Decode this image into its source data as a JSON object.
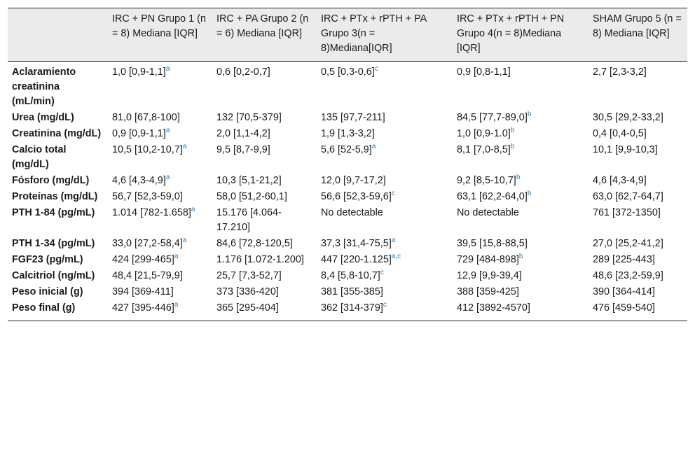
{
  "table": {
    "headers": [
      "",
      "IRC + PN Grupo 1 (n = 8) Mediana [IQR]",
      "IRC + PA Grupo 2 (n = 6) Mediana [IQR]",
      "IRC + PTx + rPTH + PA Grupo 3(n = 8)Mediana[IQR]",
      "IRC + PTx + rPTH + PN Grupo 4(n = 8)Mediana [IQR]",
      "SHAM Grupo 5 (n = 8) Mediana [IQR]"
    ],
    "rows": [
      {
        "label": "Aclaramiento creatinina (mL/min)",
        "cells": [
          {
            "v": "1,0 [0,9-1,1]",
            "s": "a"
          },
          {
            "v": "0,6 [0,2-0,7]",
            "s": ""
          },
          {
            "v": "0,5 [0,3-0,6]",
            "s": "c"
          },
          {
            "v": "0,9 [0,8-1,1]",
            "s": ""
          },
          {
            "v": "2,7 [2,3-3,2]",
            "s": ""
          }
        ]
      },
      {
        "label": "Urea (mg/dL)",
        "cells": [
          {
            "v": "81,0 [67,8-100]",
            "s": ""
          },
          {
            "v": "132 [70,5-379]",
            "s": ""
          },
          {
            "v": "135 [97,7-211]",
            "s": ""
          },
          {
            "v": "84,5 [77,7-89,0]",
            "s": "b"
          },
          {
            "v": "30,5 [29,2-33,2]",
            "s": ""
          }
        ]
      },
      {
        "label": "Creatinina (mg/dL)",
        "cells": [
          {
            "v": "0,9 [0,9-1,1]",
            "s": "a"
          },
          {
            "v": "2,0 [1,1-4,2]",
            "s": ""
          },
          {
            "v": "1,9 [1,3-3,2]",
            "s": ""
          },
          {
            "v": "1,0 [0,9-1.0]",
            "s": "b"
          },
          {
            "v": "0,4 [0,4-0,5]",
            "s": ""
          }
        ]
      },
      {
        "label": "Calcio total (mg/dL)",
        "cells": [
          {
            "v": "10,5 [10,2-10,7]",
            "s": "a"
          },
          {
            "v": "9,5 [8,7-9,9]",
            "s": ""
          },
          {
            "v": "5,6 [52-5,9]",
            "s": "a"
          },
          {
            "v": "8,1 [7,0-8,5]",
            "s": "b"
          },
          {
            "v": "10,1 [9,9-10,3]",
            "s": ""
          }
        ]
      },
      {
        "label": "Fósforo (mg/dL)",
        "cells": [
          {
            "v": "4,6 [4,3-4,9]",
            "s": "a"
          },
          {
            "v": "10,3 [5,1-21,2]",
            "s": ""
          },
          {
            "v": "12,0 [9,7-17,2]",
            "s": ""
          },
          {
            "v": "9,2 [8,5-10,7]",
            "s": "b"
          },
          {
            "v": "4,6 [4,3-4,9]",
            "s": ""
          }
        ]
      },
      {
        "label": "Proteínas (mg/dL)",
        "cells": [
          {
            "v": "56,7 [52,3-59,0]",
            "s": ""
          },
          {
            "v": "58,0 [51,2-60,1]",
            "s": ""
          },
          {
            "v": "56,6 [52,3-59,6]",
            "s": "c"
          },
          {
            "v": "63,1 [62,2-64,0]",
            "s": "b"
          },
          {
            "v": "63,0 [62,7-64,7]",
            "s": ""
          }
        ]
      },
      {
        "label": "PTH 1-84 (pg/mL)",
        "cells": [
          {
            "v": "1.014 [782-1.658]",
            "s": "a"
          },
          {
            "v": "15.176 [4.064-17.210]",
            "s": ""
          },
          {
            "v": "No detectable",
            "s": ""
          },
          {
            "v": "No detectable",
            "s": ""
          },
          {
            "v": "761 [372-1350]",
            "s": ""
          }
        ]
      },
      {
        "label": "PTH 1-34 (pg/mL)",
        "cells": [
          {
            "v": "33,0 [27,2-58,4]",
            "s": "a"
          },
          {
            "v": "84,6 [72,8-120,5]",
            "s": ""
          },
          {
            "v": "37,3 [31,4-75,5]",
            "s": "a"
          },
          {
            "v": "39,5 [15,8-88,5]",
            "s": ""
          },
          {
            "v": "27,0 [25,2-41,2]",
            "s": ""
          }
        ]
      },
      {
        "label": "FGF23 (pg/mL)",
        "cells": [
          {
            "v": "424 [299-465]",
            "s": "a"
          },
          {
            "v": "1.176 [1.072-1.200]",
            "s": ""
          },
          {
            "v": "447 [220-1.125]",
            "s": "a,c"
          },
          {
            "v": "729 [484-898]",
            "s": "b"
          },
          {
            "v": "289 [225-443]",
            "s": ""
          }
        ]
      },
      {
        "label": "Calcitriol (ng/mL)",
        "cells": [
          {
            "v": "48,4 [21,5-79,9]",
            "s": ""
          },
          {
            "v": "25,7 [7,3-52,7]",
            "s": ""
          },
          {
            "v": "8,4 [5,8-10,7]",
            "s": "c"
          },
          {
            "v": "12,9 [9,9-39,4]",
            "s": ""
          },
          {
            "v": "48,6 [23,2-59,9]",
            "s": ""
          }
        ]
      },
      {
        "label": "Peso inicial (g)",
        "cells": [
          {
            "v": "394 [369-411]",
            "s": ""
          },
          {
            "v": "373 [336-420]",
            "s": ""
          },
          {
            "v": "381 [355-385]",
            "s": ""
          },
          {
            "v": "388 [359-425]",
            "s": ""
          },
          {
            "v": "390 [364-414]",
            "s": ""
          }
        ]
      },
      {
        "label": "Peso final (g)",
        "cells": [
          {
            "v": "427 [395-446]",
            "s": "a"
          },
          {
            "v": "365 [295-404]",
            "s": ""
          },
          {
            "v": "362 [314-379]",
            "s": "c"
          },
          {
            "v": "412 [3892-4570]",
            "s": ""
          },
          {
            "v": "476 [459-540]",
            "s": ""
          }
        ]
      }
    ]
  },
  "colors": {
    "header_bg": "#ebebeb",
    "superscript": "#1f7fc4",
    "rule": "#222222"
  }
}
